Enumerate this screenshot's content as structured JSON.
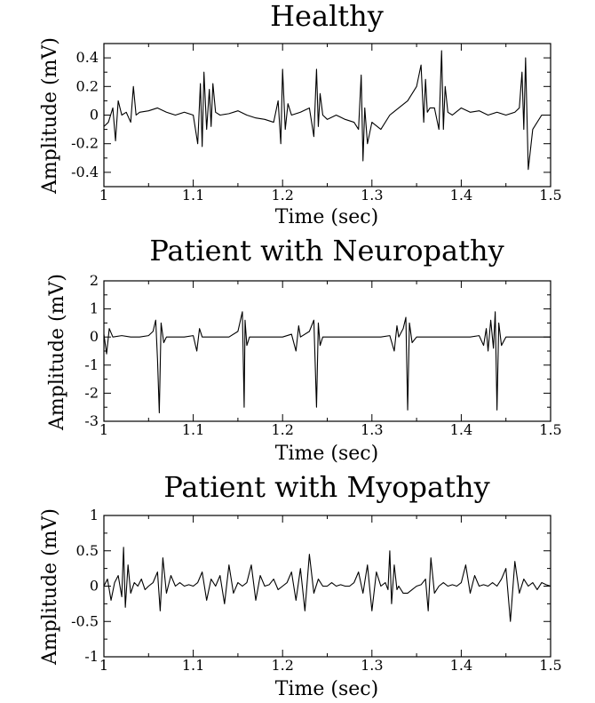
{
  "chart_data": [
    {
      "type": "line",
      "title": "Healthy",
      "xlabel": "Time (sec)",
      "ylabel": "Amplitude (mV)",
      "xlim": [
        1.0,
        1.5
      ],
      "ylim": [
        -0.5,
        0.5
      ],
      "xticks": [
        1,
        1.1,
        1.2,
        1.3,
        1.4,
        1.5
      ],
      "xtick_labels": [
        "1",
        "1.1",
        "1.2",
        "1.3",
        "1.4",
        "1.5"
      ],
      "yticks": [
        -0.4,
        -0.2,
        0,
        0.2,
        0.4
      ],
      "ytick_labels": [
        "-0.4",
        "-0.2",
        "0",
        "0.2",
        "0.4"
      ],
      "grid": false,
      "series": [
        {
          "x": [
            1.0,
            1.005,
            1.01,
            1.013,
            1.016,
            1.02,
            1.025,
            1.03,
            1.033,
            1.036,
            1.04,
            1.05,
            1.06,
            1.07,
            1.08,
            1.09,
            1.1,
            1.105,
            1.108,
            1.11,
            1.112,
            1.115,
            1.118,
            1.12,
            1.122,
            1.125,
            1.13,
            1.14,
            1.15,
            1.16,
            1.17,
            1.18,
            1.19,
            1.195,
            1.198,
            1.2,
            1.203,
            1.206,
            1.21,
            1.22,
            1.23,
            1.235,
            1.238,
            1.24,
            1.242,
            1.245,
            1.25,
            1.26,
            1.27,
            1.28,
            1.285,
            1.288,
            1.29,
            1.292,
            1.295,
            1.3,
            1.31,
            1.32,
            1.33,
            1.34,
            1.35,
            1.355,
            1.358,
            1.36,
            1.362,
            1.365,
            1.37,
            1.375,
            1.378,
            1.38,
            1.382,
            1.385,
            1.39,
            1.4,
            1.41,
            1.42,
            1.43,
            1.44,
            1.45,
            1.46,
            1.465,
            1.468,
            1.47,
            1.472,
            1.475,
            1.48,
            1.49,
            1.5
          ],
          "y": [
            -0.08,
            -0.05,
            0.05,
            -0.18,
            0.1,
            0.0,
            0.02,
            -0.05,
            0.2,
            0.0,
            0.02,
            0.03,
            0.05,
            0.02,
            0.0,
            0.02,
            0.0,
            -0.2,
            0.22,
            -0.22,
            0.3,
            -0.1,
            0.18,
            -0.08,
            0.22,
            0.02,
            0.0,
            0.01,
            0.03,
            0.0,
            -0.02,
            -0.03,
            -0.05,
            0.1,
            -0.2,
            0.32,
            -0.1,
            0.08,
            0.0,
            0.02,
            0.05,
            -0.15,
            0.32,
            -0.08,
            0.15,
            0.0,
            -0.03,
            0.0,
            -0.03,
            -0.05,
            -0.1,
            0.28,
            -0.32,
            0.05,
            -0.2,
            -0.05,
            -0.1,
            0.0,
            0.05,
            0.1,
            0.2,
            0.35,
            -0.05,
            0.25,
            0.02,
            0.05,
            0.05,
            -0.1,
            0.45,
            -0.1,
            0.2,
            0.02,
            0.0,
            0.05,
            0.02,
            0.03,
            0.0,
            0.02,
            0.0,
            0.02,
            0.05,
            0.3,
            -0.1,
            0.4,
            -0.38,
            -0.1,
            0.0,
            0.0
          ]
        }
      ]
    },
    {
      "type": "line",
      "title": "Patient with Neuropathy",
      "xlabel": "Time (sec)",
      "ylabel": "Amplitude (mV)",
      "xlim": [
        1.0,
        1.5
      ],
      "ylim": [
        -3,
        2
      ],
      "xticks": [
        1,
        1.1,
        1.2,
        1.3,
        1.4,
        1.5
      ],
      "xtick_labels": [
        "1",
        "1.1",
        "1.2",
        "1.3",
        "1.4",
        "1.5"
      ],
      "yticks": [
        -3,
        -2,
        -1,
        0,
        1,
        2
      ],
      "ytick_labels": [
        "-3",
        "-2",
        "-1",
        "0",
        "1",
        "2"
      ],
      "grid": false,
      "series": [
        {
          "x": [
            1.0,
            1.003,
            1.006,
            1.01,
            1.02,
            1.03,
            1.04,
            1.05,
            1.055,
            1.058,
            1.06,
            1.062,
            1.064,
            1.067,
            1.07,
            1.08,
            1.09,
            1.1,
            1.104,
            1.107,
            1.11,
            1.12,
            1.13,
            1.14,
            1.15,
            1.155,
            1.157,
            1.158,
            1.16,
            1.163,
            1.17,
            1.18,
            1.19,
            1.2,
            1.21,
            1.215,
            1.218,
            1.22,
            1.23,
            1.235,
            1.238,
            1.24,
            1.242,
            1.245,
            1.25,
            1.26,
            1.27,
            1.28,
            1.29,
            1.3,
            1.31,
            1.32,
            1.325,
            1.328,
            1.33,
            1.335,
            1.338,
            1.34,
            1.342,
            1.345,
            1.35,
            1.36,
            1.37,
            1.38,
            1.39,
            1.4,
            1.41,
            1.42,
            1.425,
            1.428,
            1.43,
            1.433,
            1.436,
            1.438,
            1.44,
            1.442,
            1.445,
            1.45,
            1.46,
            1.47,
            1.48,
            1.49,
            1.5
          ],
          "y": [
            0.1,
            -0.6,
            0.3,
            0.0,
            0.05,
            0.0,
            0.0,
            0.05,
            0.2,
            0.6,
            -0.8,
            -2.7,
            0.5,
            -0.2,
            0.0,
            0.0,
            0.0,
            0.05,
            -0.5,
            0.3,
            0.0,
            0.0,
            0.0,
            0.0,
            0.2,
            0.9,
            -2.5,
            0.6,
            -0.3,
            0.0,
            0.0,
            0.0,
            0.0,
            0.0,
            0.1,
            -0.5,
            0.4,
            0.0,
            0.2,
            0.6,
            -2.5,
            0.5,
            -0.3,
            0.0,
            0.0,
            0.0,
            0.0,
            0.0,
            0.0,
            0.0,
            0.0,
            0.05,
            -0.5,
            0.4,
            0.0,
            0.3,
            0.7,
            -2.6,
            0.5,
            -0.2,
            0.0,
            0.0,
            0.0,
            0.0,
            0.0,
            0.0,
            0.0,
            0.05,
            -0.3,
            0.3,
            -0.5,
            0.6,
            -0.4,
            0.9,
            -2.6,
            0.5,
            -0.3,
            0.0,
            0.0,
            0.0,
            0.0,
            0.0,
            0.0
          ]
        }
      ]
    },
    {
      "type": "line",
      "title": "Patient with Myopathy",
      "xlabel": "Time (sec)",
      "ylabel": "Amplitude (mV)",
      "xlim": [
        1.0,
        1.5
      ],
      "ylim": [
        -1,
        1
      ],
      "xticks": [
        1,
        1.1,
        1.2,
        1.3,
        1.4,
        1.5
      ],
      "xtick_labels": [
        "1",
        "1.1",
        "1.2",
        "1.3",
        "1.4",
        "1.5"
      ],
      "yticks": [
        -1,
        -0.5,
        0,
        0.5,
        1
      ],
      "ytick_labels": [
        "-1",
        "-0.5",
        "0",
        "0.5",
        "1"
      ],
      "grid": false,
      "series": [
        {
          "x": [
            1.0,
            1.004,
            1.008,
            1.012,
            1.016,
            1.02,
            1.022,
            1.024,
            1.027,
            1.03,
            1.034,
            1.038,
            1.042,
            1.046,
            1.05,
            1.055,
            1.06,
            1.063,
            1.066,
            1.07,
            1.075,
            1.08,
            1.085,
            1.09,
            1.095,
            1.1,
            1.105,
            1.11,
            1.115,
            1.12,
            1.125,
            1.13,
            1.135,
            1.14,
            1.145,
            1.15,
            1.155,
            1.16,
            1.165,
            1.17,
            1.175,
            1.18,
            1.185,
            1.19,
            1.195,
            1.2,
            1.205,
            1.21,
            1.215,
            1.22,
            1.225,
            1.23,
            1.235,
            1.24,
            1.245,
            1.25,
            1.255,
            1.26,
            1.265,
            1.27,
            1.275,
            1.28,
            1.285,
            1.29,
            1.295,
            1.3,
            1.305,
            1.31,
            1.315,
            1.318,
            1.32,
            1.322,
            1.325,
            1.328,
            1.33,
            1.335,
            1.34,
            1.345,
            1.35,
            1.355,
            1.36,
            1.363,
            1.366,
            1.37,
            1.375,
            1.38,
            1.385,
            1.39,
            1.395,
            1.4,
            1.405,
            1.41,
            1.415,
            1.42,
            1.425,
            1.43,
            1.435,
            1.44,
            1.445,
            1.45,
            1.455,
            1.46,
            1.465,
            1.47,
            1.475,
            1.48,
            1.485,
            1.49,
            1.495,
            1.5
          ],
          "y": [
            0.0,
            0.1,
            -0.2,
            0.05,
            0.15,
            -0.15,
            0.55,
            -0.3,
            0.3,
            -0.1,
            0.05,
            0.0,
            0.1,
            -0.05,
            0.0,
            0.05,
            0.2,
            -0.35,
            0.4,
            -0.1,
            0.15,
            0.0,
            0.05,
            0.0,
            0.02,
            0.0,
            0.05,
            0.2,
            -0.2,
            0.1,
            0.0,
            0.15,
            -0.25,
            0.3,
            -0.1,
            0.05,
            0.0,
            0.05,
            0.3,
            -0.2,
            0.15,
            0.0,
            0.02,
            0.1,
            -0.05,
            0.0,
            0.05,
            0.2,
            -0.2,
            0.25,
            -0.35,
            0.45,
            -0.1,
            0.1,
            0.0,
            0.0,
            0.05,
            0.0,
            0.02,
            0.0,
            0.0,
            0.05,
            0.2,
            -0.1,
            0.3,
            -0.35,
            0.2,
            0.0,
            0.05,
            -0.05,
            0.5,
            -0.25,
            0.3,
            -0.05,
            0.0,
            -0.1,
            -0.1,
            -0.05,
            0.0,
            0.02,
            0.1,
            -0.35,
            0.4,
            -0.1,
            0.0,
            0.05,
            0.0,
            0.02,
            0.0,
            0.05,
            0.3,
            -0.1,
            0.15,
            0.0,
            0.02,
            0.0,
            0.05,
            0.0,
            0.1,
            0.25,
            -0.5,
            0.35,
            -0.1,
            0.1,
            0.0,
            0.05,
            -0.05,
            0.05,
            0.02,
            0.0
          ]
        }
      ]
    }
  ]
}
